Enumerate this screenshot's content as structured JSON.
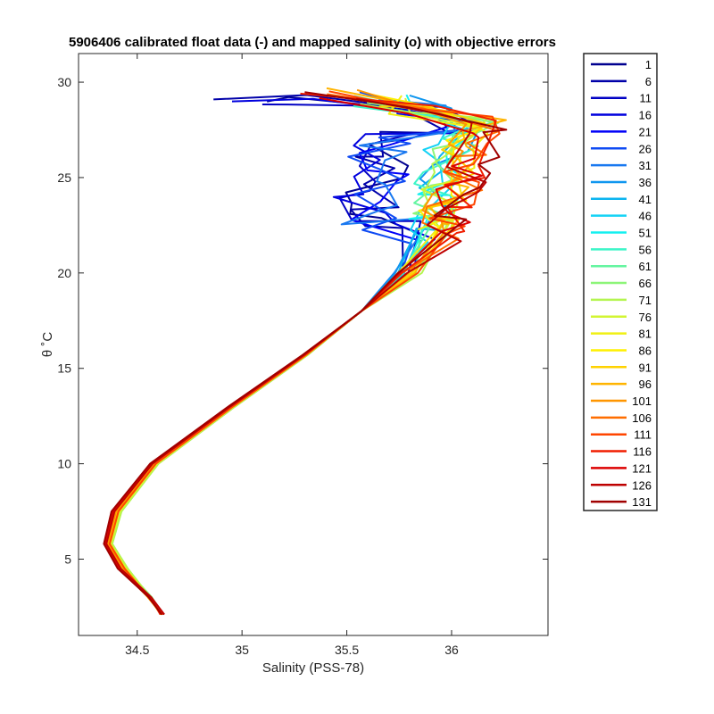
{
  "chart_data": {
    "type": "line",
    "title": "5906406 calibrated float data (-) and mapped salinity (o) with objective errors",
    "xlabel": "Salinity (PSS-78)",
    "ylabel": "θ ˚C",
    "xlim": [
      34.22,
      36.46
    ],
    "ylim": [
      1.0,
      31.5
    ],
    "xticks": [
      34.5,
      35,
      35.5,
      36
    ],
    "xtick_labels": [
      "34.5",
      "35",
      "35.5",
      "36"
    ],
    "yticks": [
      5,
      10,
      15,
      20,
      25,
      30
    ],
    "ytick_labels": [
      "5",
      "10",
      "15",
      "20",
      "25",
      "30"
    ],
    "grid": false,
    "legend_position": "outside-right",
    "colormap": "jet",
    "series": [
      {
        "name": "1",
        "color": "#00008f"
      },
      {
        "name": "6",
        "color": "#0000a9"
      },
      {
        "name": "11",
        "color": "#0000c3"
      },
      {
        "name": "16",
        "color": "#0000de"
      },
      {
        "name": "21",
        "color": "#0000f8"
      },
      {
        "name": "26",
        "color": "#0f4bf3"
      },
      {
        "name": "31",
        "color": "#1978f0"
      },
      {
        "name": "36",
        "color": "#0f96ef"
      },
      {
        "name": "41",
        "color": "#0ab4f0"
      },
      {
        "name": "46",
        "color": "#14d2f5"
      },
      {
        "name": "51",
        "color": "#14f0f0"
      },
      {
        "name": "56",
        "color": "#3cf5c8"
      },
      {
        "name": "61",
        "color": "#64f5a0"
      },
      {
        "name": "66",
        "color": "#8cf578"
      },
      {
        "name": "71",
        "color": "#b4f550"
      },
      {
        "name": "76",
        "color": "#d2f532"
      },
      {
        "name": "81",
        "color": "#f0f014"
      },
      {
        "name": "86",
        "color": "#fff000"
      },
      {
        "name": "91",
        "color": "#ffd200"
      },
      {
        "name": "96",
        "color": "#ffb400"
      },
      {
        "name": "101",
        "color": "#ff9600"
      },
      {
        "name": "106",
        "color": "#ff6e00"
      },
      {
        "name": "111",
        "color": "#ff4600"
      },
      {
        "name": "116",
        "color": "#f01e00"
      },
      {
        "name": "121",
        "color": "#dc0000"
      },
      {
        "name": "126",
        "color": "#be0000"
      },
      {
        "name": "131",
        "color": "#a00000"
      }
    ]
  }
}
